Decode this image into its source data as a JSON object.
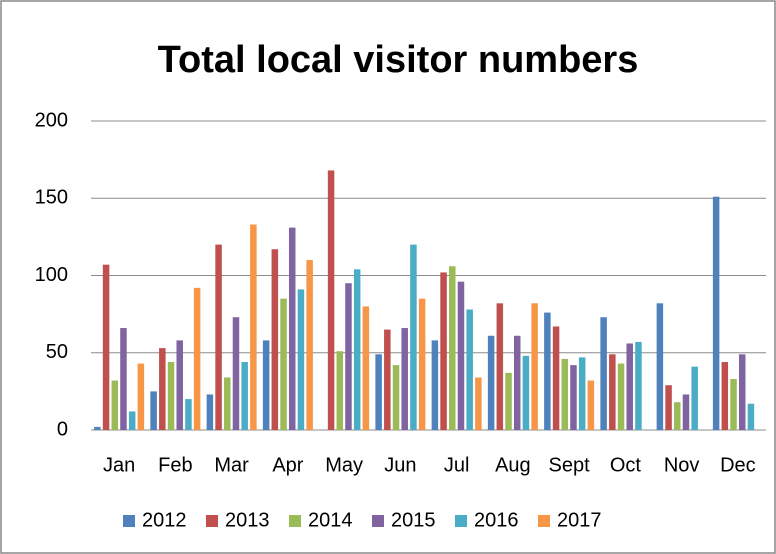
{
  "chart_data": {
    "type": "bar",
    "title": "Total local visitor numbers",
    "categories": [
      "Jan",
      "Feb",
      "Mar",
      "Apr",
      "May",
      "Jun",
      "Jul",
      "Aug",
      "Sept",
      "Oct",
      "Nov",
      "Dec"
    ],
    "series": [
      {
        "name": "2012",
        "color": "#4F81BD",
        "values": [
          2,
          25,
          23,
          58,
          null,
          49,
          58,
          61,
          76,
          73,
          82,
          151
        ]
      },
      {
        "name": "2013",
        "color": "#C0504D",
        "values": [
          107,
          53,
          120,
          117,
          168,
          65,
          102,
          82,
          67,
          49,
          29,
          44
        ]
      },
      {
        "name": "2014",
        "color": "#9BBB59",
        "values": [
          32,
          44,
          34,
          85,
          51,
          42,
          106,
          37,
          46,
          43,
          18,
          33
        ]
      },
      {
        "name": "2015",
        "color": "#8064A2",
        "values": [
          66,
          58,
          73,
          131,
          95,
          66,
          96,
          61,
          42,
          56,
          23,
          49
        ]
      },
      {
        "name": "2016",
        "color": "#4BACC6",
        "values": [
          12,
          20,
          44,
          91,
          104,
          120,
          78,
          48,
          47,
          57,
          41,
          17
        ]
      },
      {
        "name": "2017",
        "color": "#F79646",
        "values": [
          43,
          92,
          133,
          110,
          80,
          85,
          34,
          82,
          32,
          null,
          null,
          null
        ]
      }
    ],
    "ylim": [
      0,
      200
    ],
    "yticks": [
      0,
      50,
      100,
      150,
      200
    ],
    "grid": true,
    "legend": "bottom"
  }
}
